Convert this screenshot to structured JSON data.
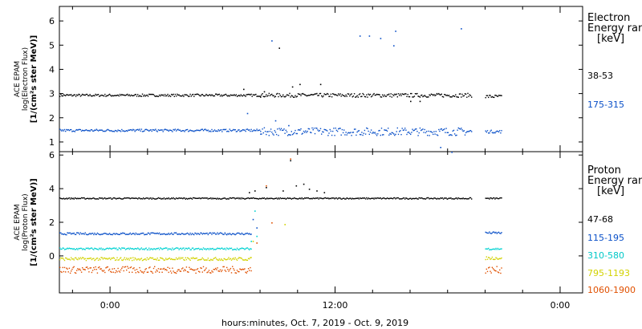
{
  "instrument_label": "ACE EPAM",
  "x_axis": {
    "label": "hours:minutes, Oct.  7, 2019 - Oct.  9, 2019",
    "ticks": [
      "0:00",
      "12:00",
      "0:00"
    ],
    "tick_hours": [
      0,
      12,
      24
    ],
    "range_hours": [
      -2.7,
      25.2
    ]
  },
  "legends": {
    "electron": {
      "title": "Electron",
      "subtitle": "Energy ran",
      "unit": "[keV]"
    },
    "proton": {
      "title": "Proton",
      "subtitle": "Energy ran",
      "unit": "[keV]"
    }
  },
  "colors": {
    "black": "#000000",
    "blue": "#0a50c8",
    "cyan": "#00d2d2",
    "yellow": "#d2d200",
    "orange": "#e05000"
  },
  "chart_data": [
    {
      "type": "scatter",
      "panel": "top",
      "ylabel": "ACE EPAM log(Electron Flux) [1/(cm^2 s ster MeV)]",
      "ylabel_lines": [
        "ACE EPAM",
        "log(Electron Flux)",
        "[1/(cm²s ster MeV)]"
      ],
      "ylim": [
        0.6,
        6.6
      ],
      "yticks": [
        1,
        2,
        3,
        4,
        5,
        6
      ],
      "series": [
        {
          "name": "38-53",
          "color": "#000000",
          "segments": [
            {
              "start": -2.7,
              "end": 8.0,
              "base": 2.95,
              "noise": 0.05
            },
            {
              "start": 8.0,
              "end": 19.3,
              "base": 2.95,
              "noise": 0.08
            },
            {
              "start": 20.0,
              "end": 20.9,
              "base": 2.9,
              "noise": 0.07
            }
          ],
          "outliers": [
            [
              7.1,
              3.2
            ],
            [
              8.2,
              3.1
            ],
            [
              9.0,
              4.9
            ],
            [
              9.7,
              3.3
            ],
            [
              10.1,
              3.4
            ],
            [
              11.2,
              3.4
            ],
            [
              16.0,
              2.7
            ],
            [
              16.5,
              2.7
            ]
          ]
        },
        {
          "name": "175-315",
          "color": "#0a50c8",
          "segments": [
            {
              "start": -2.7,
              "end": 8.0,
              "base": 1.5,
              "noise": 0.05
            },
            {
              "start": 8.0,
              "end": 19.3,
              "base": 1.45,
              "noise": 0.16
            },
            {
              "start": 20.0,
              "end": 20.9,
              "base": 1.45,
              "noise": 0.06
            }
          ],
          "outliers": [
            [
              7.3,
              2.2
            ],
            [
              8.6,
              5.2
            ],
            [
              13.3,
              5.4
            ],
            [
              13.8,
              5.4
            ],
            [
              14.4,
              5.3
            ],
            [
              15.2,
              5.6
            ],
            [
              15.1,
              5.0
            ],
            [
              18.7,
              5.7
            ],
            [
              17.6,
              0.8
            ],
            [
              18.2,
              0.6
            ],
            [
              8.8,
              1.9
            ],
            [
              9.5,
              1.7
            ]
          ]
        }
      ]
    },
    {
      "type": "scatter",
      "panel": "bottom",
      "ylabel": "ACE EPAM log(Proton Flux) [1/(cm^2 s ster MeV)]",
      "ylabel_lines": [
        "ACE EPAM",
        "log(Proton Flux)",
        "[1/(cm²s ster MeV)]"
      ],
      "ylim": [
        -2.2,
        6.2
      ],
      "yticks": [
        0,
        2,
        4,
        6
      ],
      "series": [
        {
          "name": "47-68",
          "color": "#000000",
          "segments": [
            {
              "start": -2.7,
              "end": 19.3,
              "base": 3.45,
              "noise": 0.04
            },
            {
              "start": 20.0,
              "end": 20.9,
              "base": 3.45,
              "noise": 0.04
            }
          ],
          "outliers": [
            [
              7.4,
              3.8
            ],
            [
              7.7,
              3.9
            ],
            [
              8.3,
              4.1
            ],
            [
              9.2,
              3.9
            ],
            [
              9.9,
              4.2
            ],
            [
              10.3,
              4.3
            ],
            [
              10.6,
              4.0
            ],
            [
              11.0,
              3.9
            ],
            [
              11.4,
              3.8
            ],
            [
              9.6,
              5.7
            ]
          ]
        },
        {
          "name": "115-195",
          "color": "#0a50c8",
          "segments": [
            {
              "start": -2.7,
              "end": 7.5,
              "base": 1.35,
              "noise": 0.06
            },
            {
              "start": 20.0,
              "end": 20.9,
              "base": 1.4,
              "noise": 0.06
            }
          ],
          "outliers": [
            [
              7.8,
              1.7
            ],
            [
              7.6,
              2.2
            ]
          ]
        },
        {
          "name": "310-580",
          "color": "#00d2d2",
          "segments": [
            {
              "start": -2.7,
              "end": 7.5,
              "base": 0.45,
              "noise": 0.06
            },
            {
              "start": 20.0,
              "end": 20.9,
              "base": 0.45,
              "noise": 0.06
            }
          ],
          "outliers": [
            [
              7.7,
              2.7
            ],
            [
              7.8,
              1.2
            ],
            [
              7.5,
              0.9
            ]
          ]
        },
        {
          "name": "795-1193",
          "color": "#d2d200",
          "segments": [
            {
              "start": -2.7,
              "end": 7.5,
              "base": -0.15,
              "noise": 0.09
            },
            {
              "start": 20.0,
              "end": 20.9,
              "base": -0.1,
              "noise": 0.09
            }
          ],
          "outliers": [
            [
              7.6,
              0.9
            ],
            [
              9.3,
              1.9
            ]
          ]
        },
        {
          "name": "1060-1900",
          "color": "#e05000",
          "segments": [
            {
              "start": -2.7,
              "end": 7.5,
              "base": -0.8,
              "noise": 0.2
            },
            {
              "start": 20.0,
              "end": 20.9,
              "base": -0.8,
              "noise": 0.2
            }
          ],
          "outliers": [
            [
              7.8,
              0.8
            ],
            [
              8.6,
              2.0
            ],
            [
              8.3,
              4.2
            ],
            [
              9.6,
              5.8
            ]
          ]
        }
      ]
    }
  ]
}
